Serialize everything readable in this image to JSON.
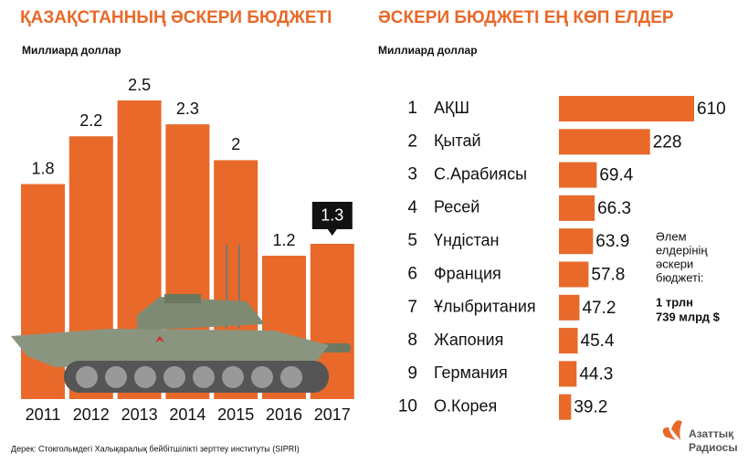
{
  "chart_data": [
    {
      "type": "bar",
      "title": "ҚАЗАҚСТАННЫҢ ӘСКЕРИ БЮДЖЕТІ",
      "subtitle": "Миллиард доллар",
      "categories": [
        "2011",
        "2012",
        "2013",
        "2014",
        "2015",
        "2016",
        "2017"
      ],
      "values": [
        1.8,
        2.2,
        2.5,
        2.3,
        2,
        1.2,
        1.3
      ],
      "color": "#e8692a",
      "highlight_index": 6
    },
    {
      "type": "hbar",
      "title": "ӘСКЕРИ БЮДЖЕТІ ЕҢ КӨП ЕЛДЕР",
      "subtitle": "Миллиард доллар",
      "ranks": [
        1,
        2,
        3,
        4,
        5,
        6,
        7,
        8,
        9,
        10
      ],
      "categories": [
        "АҚШ",
        "Қытай",
        "С.Арабиясы",
        "Ресей",
        "Үндістан",
        "Франция",
        "Ұлыбритания",
        "Жапония",
        "Германия",
        "О.Корея"
      ],
      "values": [
        610,
        228,
        69.4,
        66.3,
        63.9,
        57.8,
        47.2,
        45.4,
        44.3,
        39.2
      ],
      "color": "#e8692a",
      "scale": "log",
      "annotation": [
        "Әлем",
        "елдерінің",
        "әскери",
        "бюджеті:"
      ],
      "annotation_bold": [
        "1 трлн",
        "739 млрд $"
      ]
    }
  ],
  "source": "Дерек: Стокгольмдегі Халықаралық бейбітшілікті зерттеу институты (SIPRI)",
  "logo": [
    "Азаттық",
    "Радиосы"
  ]
}
